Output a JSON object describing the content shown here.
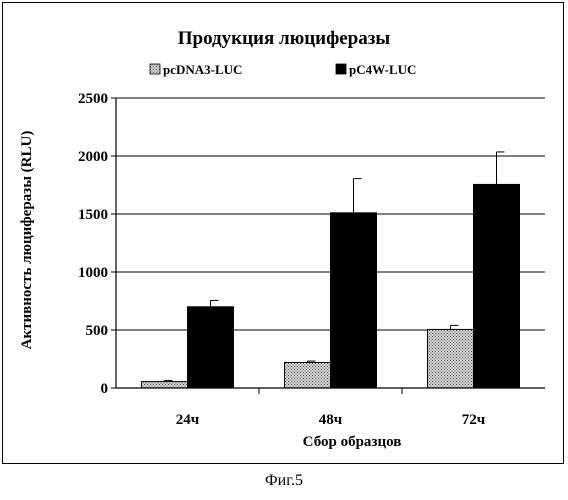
{
  "figure_caption": "Фиг.5",
  "chart_data": {
    "type": "bar",
    "title": "Продукция люциферазы",
    "xlabel": "Сбор образцов",
    "ylabel": "Активность люциферазы (RLU)",
    "ylim": [
      0,
      2500
    ],
    "yticks": [
      "0",
      "500",
      "1000",
      "1500",
      "2000",
      "2500"
    ],
    "categories": [
      "24ч",
      "48ч",
      "72ч"
    ],
    "grid": "horizontal",
    "legend_position": "top",
    "series": [
      {
        "name": "pcDNA3-LUC",
        "values": [
          55,
          220,
          505
        ],
        "errors": [
          10,
          12,
          35
        ],
        "fill": "stippled-gray"
      },
      {
        "name": "pC4W-LUC",
        "values": [
          700,
          1510,
          1755
        ],
        "errors": [
          55,
          295,
          280
        ],
        "fill": "#000000"
      }
    ]
  }
}
